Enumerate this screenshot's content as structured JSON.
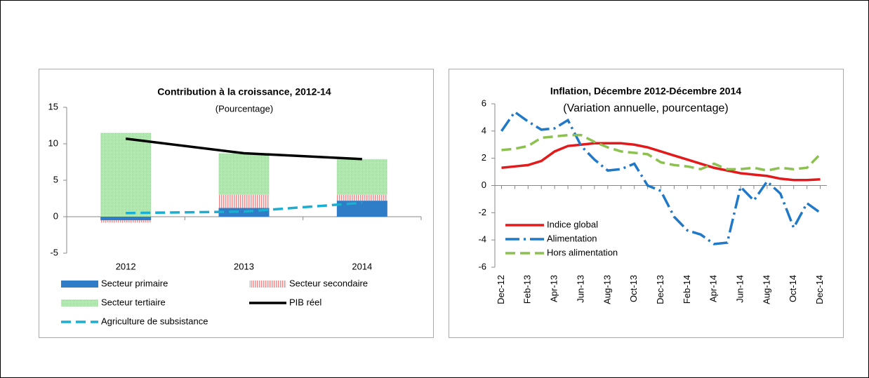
{
  "chart_data": [
    {
      "type": "bar",
      "title": "Contribution à la croissance, 2012-14",
      "subtitle": "(Pourcentage)",
      "categories": [
        "2012",
        "2013",
        "2014"
      ],
      "series": [
        {
          "name": "Secteur primaire",
          "type": "bar",
          "color": "#2e7dc6",
          "values": [
            -0.5,
            1.2,
            2.2
          ]
        },
        {
          "name": "Secteur secondaire",
          "type": "bar",
          "color": "#f08a8a",
          "pattern": "stripes",
          "values": [
            -0.3,
            1.8,
            0.8
          ]
        },
        {
          "name": "Secteur tertiaire",
          "type": "bar",
          "color": "#a9d6a9",
          "pattern": "dots",
          "values": [
            11.5,
            5.7,
            4.9
          ]
        },
        {
          "name": "PIB réel",
          "type": "line",
          "color": "#000000",
          "values": [
            10.7,
            8.7,
            7.9
          ]
        },
        {
          "name": "Agriculture de subsistance",
          "type": "line",
          "color": "#1aaed0",
          "style": "dashed",
          "values": [
            0.5,
            0.7,
            1.9
          ]
        }
      ],
      "stacked": true,
      "ylim": [
        -5,
        15
      ],
      "yticks": [
        -5,
        0,
        5,
        10,
        15
      ],
      "legend": "bottom"
    },
    {
      "type": "line",
      "title": "Inflation, Décembre 2012-Décembre 2014",
      "subtitle": "(Variation annuelle, pourcentage)",
      "categories": [
        "Dec-12",
        null,
        "Feb-13",
        null,
        "Apr-13",
        null,
        "Jun-13",
        null,
        "Aug-13",
        null,
        "Oct-13",
        null,
        "Dec-13",
        null,
        "Feb-14",
        null,
        "Apr-14",
        null,
        "Jun-14",
        null,
        "Aug-14",
        null,
        "Oct-14",
        null,
        "Dec-14"
      ],
      "series": [
        {
          "name": "Indice global",
          "color": "#e31a1c",
          "style": "solid",
          "values": [
            1.3,
            1.4,
            1.5,
            1.8,
            2.5,
            2.9,
            3.0,
            3.1,
            3.1,
            3.1,
            3.0,
            2.8,
            2.5,
            2.2,
            1.9,
            1.6,
            1.3,
            1.1,
            0.9,
            0.8,
            0.7,
            0.5,
            0.4,
            0.4,
            0.45
          ]
        },
        {
          "name": "Alimentation",
          "color": "#1f78c8",
          "style": "dashdot",
          "values": [
            4.0,
            5.4,
            4.7,
            4.1,
            4.2,
            4.8,
            2.9,
            1.9,
            1.1,
            1.2,
            1.6,
            0.0,
            -0.4,
            -2.3,
            -3.3,
            -3.6,
            -4.3,
            -4.2,
            -0.1,
            -1.1,
            0.3,
            -0.6,
            -3.1,
            -1.3,
            -2.0
          ]
        },
        {
          "name": "Hors alimentation",
          "color": "#8cc152",
          "style": "dashed",
          "values": [
            2.6,
            2.7,
            2.9,
            3.5,
            3.6,
            3.7,
            3.7,
            3.2,
            2.8,
            2.5,
            2.4,
            2.3,
            1.7,
            1.5,
            1.4,
            1.2,
            1.6,
            1.2,
            1.2,
            1.3,
            1.1,
            1.3,
            1.2,
            1.3,
            2.3
          ]
        }
      ],
      "ylim": [
        -6,
        6
      ],
      "yticks": [
        -6,
        -4,
        -2,
        0,
        2,
        4,
        6
      ],
      "legend": "lower left"
    }
  ]
}
